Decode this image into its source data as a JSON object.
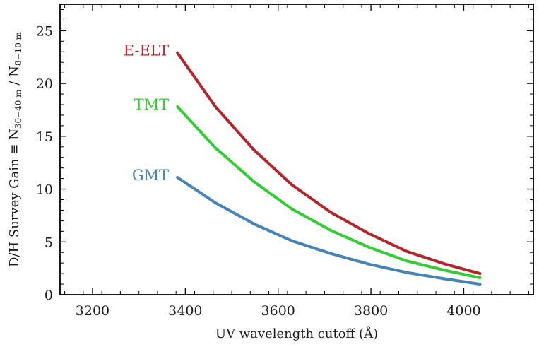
{
  "chart_data": {
    "type": "line",
    "xlabel": "UV wavelength cutoff (Å)",
    "ylabel": "D/H Survey Gain ≡ N30−40 m / N8−10 m",
    "ylabel_parts": {
      "prefix": "D/H Survey Gain ≡ N",
      "num_sub": "30−40 m",
      "sep": " / N",
      "den_sub": "8−10 m"
    },
    "xlim": [
      3130,
      4150
    ],
    "ylim": [
      0,
      27.5
    ],
    "xticks": [
      3200,
      3400,
      3600,
      3800,
      4000
    ],
    "yticks": [
      0,
      5,
      10,
      15,
      20,
      25
    ],
    "grid": false,
    "series": [
      {
        "name": "E-ELT",
        "color": "#b2262b",
        "x": [
          3383,
          3465,
          3548,
          3630,
          3713,
          3795,
          3877,
          3960,
          4035
        ],
        "y": [
          22.9,
          17.8,
          13.7,
          10.4,
          7.8,
          5.8,
          4.1,
          2.9,
          2.0
        ]
      },
      {
        "name": "TMT",
        "color": "#33cc33",
        "x": [
          3383,
          3465,
          3548,
          3630,
          3713,
          3795,
          3877,
          3960,
          4035
        ],
        "y": [
          17.8,
          13.9,
          10.7,
          8.1,
          6.1,
          4.5,
          3.2,
          2.3,
          1.6
        ]
      },
      {
        "name": "GMT",
        "color": "#4682b4",
        "x": [
          3383,
          3465,
          3548,
          3630,
          3713,
          3795,
          3877,
          3960,
          4035
        ],
        "y": [
          11.1,
          8.7,
          6.7,
          5.1,
          3.9,
          2.9,
          2.1,
          1.5,
          1.0
        ]
      }
    ]
  }
}
